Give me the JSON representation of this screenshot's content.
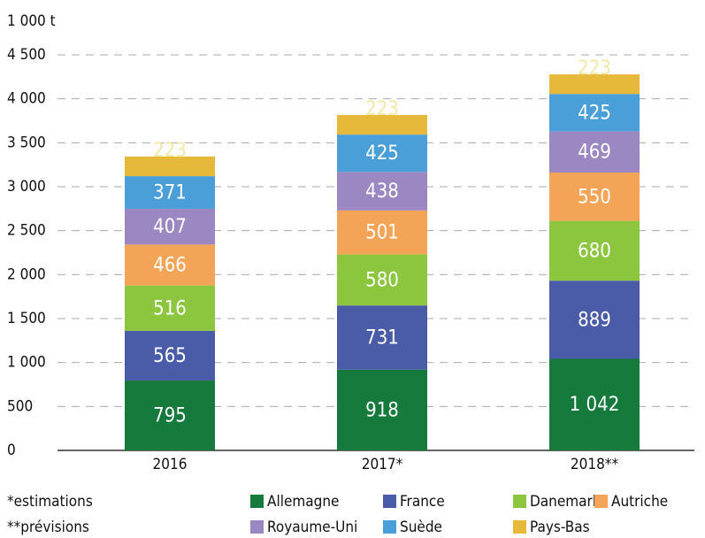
{
  "chart_data": {
    "type": "stacked_bar",
    "y_unit_label": "1 000 t",
    "categories": [
      "2016",
      "2017*",
      "2018**"
    ],
    "series": [
      {
        "name": "Allemagne",
        "color": "#157a3c",
        "values": [
          795,
          918,
          1042
        ],
        "value_labels": [
          "795",
          "918",
          "1 042"
        ]
      },
      {
        "name": "France",
        "color": "#4a5ba8",
        "values": [
          565,
          731,
          889
        ]
      },
      {
        "name": "Danemark",
        "color": "#8cc63f",
        "values": [
          516,
          580,
          680
        ]
      },
      {
        "name": "Autriche",
        "color": "#f4a456",
        "values": [
          466,
          501,
          550
        ]
      },
      {
        "name": "Royaume-Uni",
        "color": "#9b87c1",
        "values": [
          407,
          438,
          469
        ]
      },
      {
        "name": "Suède",
        "color": "#4a9fd8",
        "values": [
          371,
          425,
          425
        ]
      },
      {
        "name": "Pays-Bas",
        "color": "#e6b93a",
        "values": [
          223,
          223,
          223
        ]
      }
    ],
    "ylim": [
      0,
      4500
    ],
    "yticks": [
      0,
      500,
      {
        "value": 1000,
        "label": "1 000"
      },
      {
        "value": 1500,
        "label": "1 500"
      },
      {
        "value": 2000,
        "label": "2 000"
      },
      {
        "value": 2500,
        "label": "2 500"
      },
      {
        "value": 3000,
        "label": "3 000"
      },
      {
        "value": 3500,
        "label": "3 500"
      },
      {
        "value": 4000,
        "label": "4 000"
      },
      {
        "value": 4500,
        "label": "4 500"
      }
    ],
    "grid": true,
    "notes": [
      "*estimations",
      "**prévisions"
    ]
  }
}
